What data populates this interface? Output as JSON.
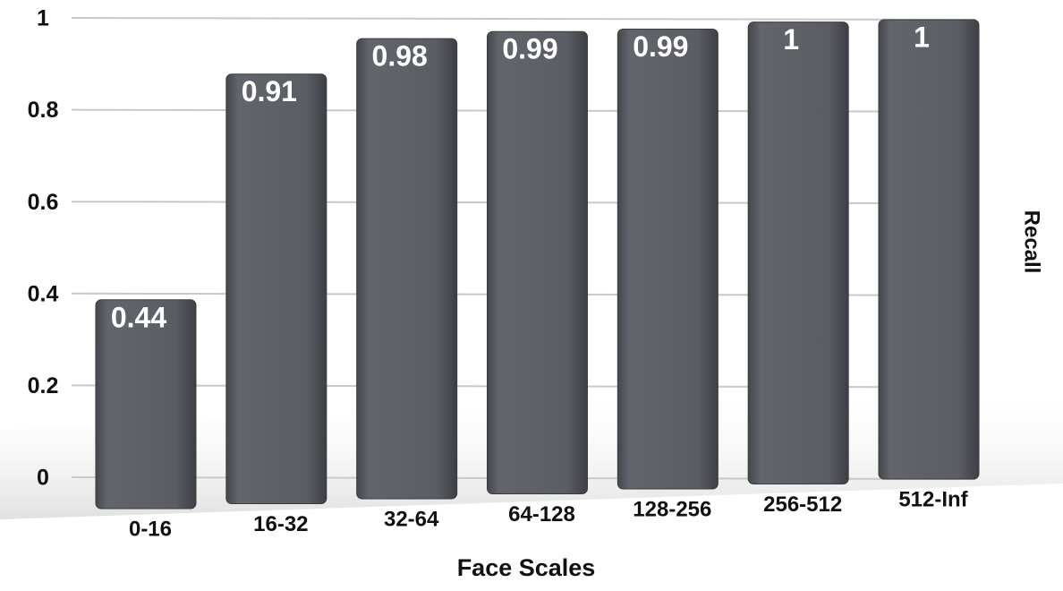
{
  "chart_data": {
    "type": "bar",
    "x_label": "Face Scales",
    "y_label": "Recall",
    "categories": [
      "0-16",
      "16-32",
      "32-64",
      "64-128",
      "128-256",
      "256-512",
      "512-Inf"
    ],
    "values": [
      0.44,
      0.91,
      0.98,
      0.99,
      0.99,
      1,
      1
    ],
    "color": "#5b5e64",
    "ylim": [
      0,
      1
    ],
    "yticks": [
      0,
      0.2,
      0.4,
      0.6,
      0.8,
      1
    ],
    "grid": true
  }
}
